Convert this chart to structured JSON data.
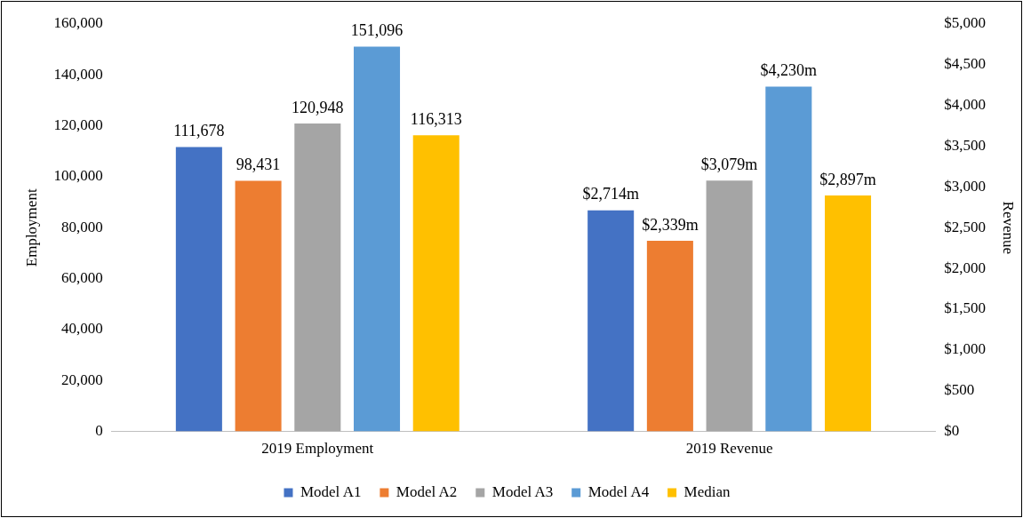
{
  "chart_data": {
    "type": "bar",
    "categories": [
      "2019 Employment",
      "2019 Revenue"
    ],
    "ylabel": "Employment",
    "y2label": "Revenue",
    "ylim": [
      0,
      160000
    ],
    "yticks": [
      {
        "value": 0,
        "label": "0"
      },
      {
        "value": 20000,
        "label": "20,000"
      },
      {
        "value": 40000,
        "label": "40,000"
      },
      {
        "value": 60000,
        "label": "60,000"
      },
      {
        "value": 80000,
        "label": "80,000"
      },
      {
        "value": 100000,
        "label": "100,000"
      },
      {
        "value": 120000,
        "label": "120,000"
      },
      {
        "value": 140000,
        "label": "140,000"
      },
      {
        "value": 160000,
        "label": "160,000"
      }
    ],
    "y2lim": [
      0,
      5000
    ],
    "y2ticks": [
      {
        "value": 0,
        "label": "$0"
      },
      {
        "value": 500,
        "label": "$500"
      },
      {
        "value": 1000,
        "label": "$1,000"
      },
      {
        "value": 1500,
        "label": "$1,500"
      },
      {
        "value": 2000,
        "label": "$2,000"
      },
      {
        "value": 2500,
        "label": "$2,500"
      },
      {
        "value": 3000,
        "label": "$3,000"
      },
      {
        "value": 3500,
        "label": "$3,500"
      },
      {
        "value": 4000,
        "label": "$4,000"
      },
      {
        "value": 4500,
        "label": "$4,500"
      },
      {
        "value": 5000,
        "label": "$5,000"
      }
    ],
    "grid": false,
    "legend": "bottom",
    "series": [
      {
        "name": "Model A1",
        "color": "#4472c4",
        "values": [
          111678,
          null
        ],
        "value_labels": [
          "111,678",
          null
        ]
      },
      {
        "name": "Model A2",
        "color": "#ed7d31",
        "values": [
          98431,
          null
        ],
        "value_labels": [
          "98,431",
          null
        ]
      },
      {
        "name": "Model A3",
        "color": "#a5a5a5",
        "values": [
          120948,
          null
        ],
        "value_labels": [
          "120,948",
          null
        ]
      },
      {
        "name": "Model A4",
        "color": "#5b9bd5",
        "values": [
          151096,
          null
        ],
        "value_labels": [
          "151,096",
          null
        ]
      },
      {
        "name": "Median",
        "color": "#ffc000",
        "values": [
          116313,
          null
        ],
        "value_labels": [
          "116,313",
          null
        ]
      },
      {
        "color": "#4472c4",
        "axis": "y2",
        "values": [
          null,
          2714
        ],
        "value_labels": [
          null,
          "$2,714m"
        ]
      },
      {
        "color": "#ed7d31",
        "axis": "y2",
        "values": [
          null,
          2339
        ],
        "value_labels": [
          null,
          "$2,339m"
        ]
      },
      {
        "color": "#a5a5a5",
        "axis": "y2",
        "values": [
          null,
          3079
        ],
        "value_labels": [
          null,
          "$3,079m"
        ]
      },
      {
        "color": "#5b9bd5",
        "axis": "y2",
        "values": [
          null,
          4230
        ],
        "value_labels": [
          null,
          "$4,230m"
        ]
      },
      {
        "color": "#ffc000",
        "axis": "y2",
        "values": [
          null,
          2897
        ],
        "value_labels": [
          null,
          "$2,897m"
        ]
      }
    ]
  }
}
